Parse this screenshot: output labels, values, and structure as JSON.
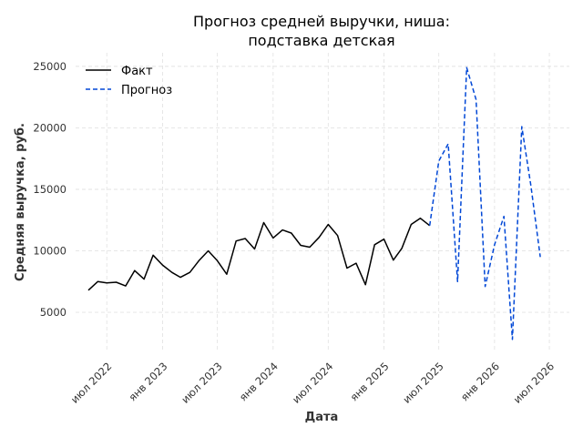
{
  "chart_data": {
    "type": "line",
    "title_lines": [
      "Прогноз средней выручки, ниша:",
      "подставка детская"
    ],
    "xlabel": "Дата",
    "ylabel": "Средняя выручка, руб.",
    "ylim": [
      1900,
      26100
    ],
    "xlim": [
      "2022-03-20",
      "2026-09-05"
    ],
    "grid": true,
    "legend_position": "top-left",
    "y_ticks": [
      5000,
      10000,
      15000,
      20000,
      25000
    ],
    "x_ticks": [
      {
        "date": "2022-07-01",
        "label": "июл 2022"
      },
      {
        "date": "2023-01-01",
        "label": "янв 2023"
      },
      {
        "date": "2023-07-01",
        "label": "июл 2023"
      },
      {
        "date": "2024-01-01",
        "label": "янв 2024"
      },
      {
        "date": "2024-07-01",
        "label": "июл 2024"
      },
      {
        "date": "2025-01-01",
        "label": "янв 2025"
      },
      {
        "date": "2025-07-01",
        "label": "июл 2025"
      },
      {
        "date": "2026-01-01",
        "label": "янв 2026"
      },
      {
        "date": "2026-07-01",
        "label": "июл 2026"
      }
    ],
    "series": [
      {
        "name": "Факт",
        "color": "#000000",
        "dash": false,
        "points": [
          [
            "2022-05-01",
            6800
          ],
          [
            "2022-06-01",
            7500
          ],
          [
            "2022-07-01",
            7400
          ],
          [
            "2022-08-01",
            7450
          ],
          [
            "2022-09-01",
            7150
          ],
          [
            "2022-10-01",
            8400
          ],
          [
            "2022-11-01",
            7700
          ],
          [
            "2022-12-01",
            9650
          ],
          [
            "2023-01-01",
            8850
          ],
          [
            "2023-02-01",
            8250
          ],
          [
            "2023-03-01",
            7850
          ],
          [
            "2023-04-01",
            8250
          ],
          [
            "2023-05-01",
            9200
          ],
          [
            "2023-06-01",
            10000
          ],
          [
            "2023-07-01",
            9200
          ],
          [
            "2023-08-01",
            8100
          ],
          [
            "2023-09-01",
            10800
          ],
          [
            "2023-10-01",
            11000
          ],
          [
            "2023-11-01",
            10150
          ],
          [
            "2023-12-01",
            12300
          ],
          [
            "2024-01-01",
            11050
          ],
          [
            "2024-02-01",
            11700
          ],
          [
            "2024-03-01",
            11450
          ],
          [
            "2024-04-01",
            10450
          ],
          [
            "2024-05-01",
            10300
          ],
          [
            "2024-06-01",
            11100
          ],
          [
            "2024-07-01",
            12150
          ],
          [
            "2024-08-01",
            11250
          ],
          [
            "2024-09-01",
            8600
          ],
          [
            "2024-10-01",
            9000
          ],
          [
            "2024-11-01",
            7250
          ],
          [
            "2024-12-01",
            10500
          ],
          [
            "2025-01-01",
            10950
          ],
          [
            "2025-02-01",
            9250
          ],
          [
            "2025-03-01",
            10200
          ],
          [
            "2025-04-01",
            12150
          ],
          [
            "2025-05-01",
            12650
          ],
          [
            "2025-06-01",
            12050
          ]
        ]
      },
      {
        "name": "Прогноз",
        "color": "#0047d6",
        "dash": true,
        "points": [
          [
            "2025-06-01",
            12050
          ],
          [
            "2025-07-01",
            17300
          ],
          [
            "2025-08-01",
            18700
          ],
          [
            "2025-09-01",
            7500
          ],
          [
            "2025-10-01",
            24900
          ],
          [
            "2025-11-01",
            22300
          ],
          [
            "2025-12-01",
            7100
          ],
          [
            "2026-01-01",
            10500
          ],
          [
            "2026-02-01",
            12800
          ],
          [
            "2026-03-01",
            2800
          ],
          [
            "2026-04-01",
            20100
          ],
          [
            "2026-05-01",
            15300
          ],
          [
            "2026-06-01",
            9500
          ]
        ]
      }
    ]
  }
}
